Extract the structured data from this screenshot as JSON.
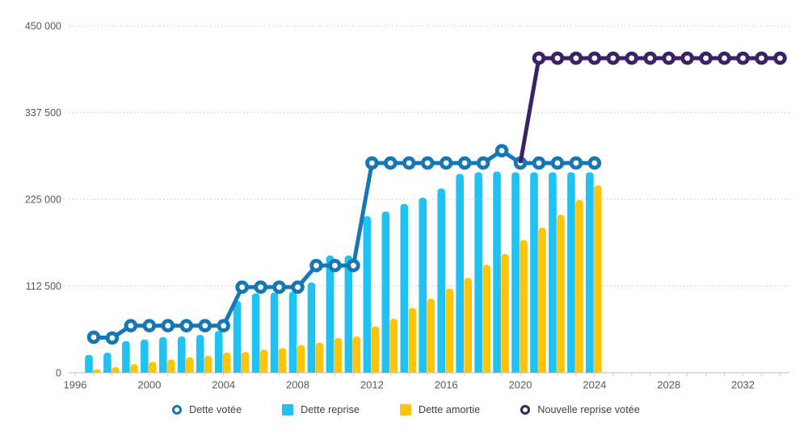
{
  "chart_data": {
    "type": "bar-line-combo",
    "title": "",
    "xlabel": "",
    "ylabel": "",
    "ylim": [
      0,
      450000
    ],
    "xlim": [
      1995.7,
      2034.6
    ],
    "grid": "horizontal-dotted",
    "legend_position": "bottom-center",
    "y_ticks": [
      {
        "value": 0,
        "label": "0"
      },
      {
        "value": 112500,
        "label": "112 500"
      },
      {
        "value": 225000,
        "label": "225 000"
      },
      {
        "value": 337500,
        "label": "337 500"
      },
      {
        "value": 450000,
        "label": "450 000"
      }
    ],
    "x_tick_labels": [
      1996,
      2000,
      2004,
      2008,
      2012,
      2016,
      2020,
      2024,
      2028,
      2032
    ],
    "x_minor_ticks_every_year": {
      "from": 1996,
      "to": 2034
    },
    "series": [
      {
        "name": "Dette reprise",
        "type": "bar",
        "color": "#1fc2f3",
        "x": [
          1997,
          1998,
          1999,
          2000,
          2001,
          2002,
          2003,
          2004,
          2005,
          2006,
          2007,
          2008,
          2009,
          2010,
          2011,
          2012,
          2013,
          2014,
          2015,
          2016,
          2017,
          2018,
          2019,
          2020,
          2021,
          2022,
          2023,
          2024
        ],
        "values": [
          23000,
          26000,
          41000,
          43000,
          46000,
          47000,
          49000,
          54000,
          93000,
          103000,
          104000,
          105000,
          117000,
          152000,
          152000,
          203000,
          209000,
          219000,
          227000,
          239000,
          258000,
          260000,
          261000,
          260000,
          260000,
          260000,
          260000,
          260000
        ]
      },
      {
        "name": "Dette amortie",
        "type": "bar",
        "color": "#fdc50a",
        "x": [
          1997,
          1998,
          1999,
          2000,
          2001,
          2002,
          2003,
          2004,
          2005,
          2006,
          2007,
          2008,
          2009,
          2010,
          2011,
          2012,
          2013,
          2014,
          2015,
          2016,
          2017,
          2018,
          2019,
          2020,
          2021,
          2022,
          2023,
          2024
        ],
        "values": [
          4000,
          7000,
          11000,
          14000,
          17000,
          20000,
          22000,
          26000,
          27000,
          30000,
          32000,
          36000,
          39000,
          45000,
          47000,
          60000,
          70000,
          84000,
          96000,
          109000,
          123000,
          140000,
          154000,
          172000,
          188000,
          205000,
          224000,
          243000
        ]
      },
      {
        "name": "Dette votée",
        "type": "line",
        "color": "#1578b5",
        "marker": "ring",
        "x": [
          1997,
          1998,
          1999,
          2000,
          2001,
          2002,
          2003,
          2004,
          2005,
          2006,
          2007,
          2008,
          2009,
          2010,
          2011,
          2012,
          2013,
          2014,
          2015,
          2016,
          2017,
          2018,
          2019,
          2020,
          2021,
          2022,
          2023,
          2024
        ],
        "values": [
          46000,
          45000,
          61000,
          61000,
          61000,
          61000,
          61000,
          61000,
          111000,
          111000,
          111000,
          111000,
          139000,
          139000,
          139000,
          272000,
          272000,
          272000,
          272000,
          272000,
          272000,
          272000,
          288000,
          272000,
          272000,
          272000,
          272000,
          272000
        ]
      },
      {
        "name": "Nouvelle reprise votée",
        "type": "line",
        "color": "#392266",
        "marker": "ring",
        "marker_skip_first": true,
        "x": [
          2020,
          2021,
          2022,
          2023,
          2024,
          2025,
          2026,
          2027,
          2028,
          2029,
          2030,
          2031,
          2032,
          2033,
          2034
        ],
        "values": [
          272000,
          408000,
          408000,
          408000,
          408000,
          408000,
          408000,
          408000,
          408000,
          408000,
          408000,
          408000,
          408000,
          408000,
          408000
        ]
      }
    ]
  },
  "legend": {
    "items": [
      {
        "label": "Dette votée",
        "icon": "ring",
        "color": "#1578b5"
      },
      {
        "label": "Dette reprise",
        "icon": "square",
        "color": "#1fc2f3"
      },
      {
        "label": "Dette amortie",
        "icon": "square",
        "color": "#fdc50a"
      },
      {
        "label": "Nouvelle reprise votée",
        "icon": "ring",
        "color": "#392266"
      }
    ]
  },
  "colors": {
    "axis": "#c9c9c9",
    "grid": "#c4c4c4",
    "tick_label": "#595959",
    "legend_text": "#3f3f3f",
    "background": "#ffffff"
  }
}
